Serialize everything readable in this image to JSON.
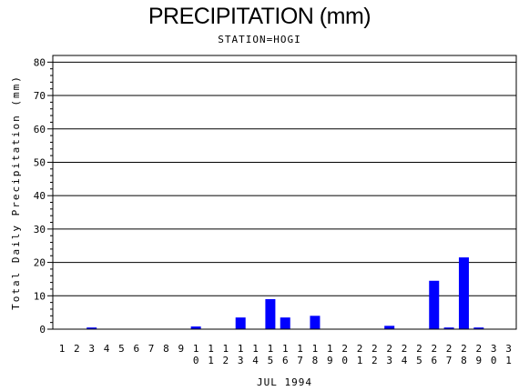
{
  "chart_data": {
    "type": "bar",
    "title": "PRECIPITATION (mm)",
    "subtitle": "STATION=HOGI",
    "xlabel": "JUL 1994",
    "ylabel": "Total Daily Precipitation (mm)",
    "ylim": [
      0,
      82
    ],
    "yticks": [
      0,
      10,
      20,
      30,
      40,
      50,
      60,
      70,
      80
    ],
    "grid": "horizontal",
    "bar_color": "#0000ff",
    "categories": [
      "1",
      "2",
      "3",
      "4",
      "5",
      "6",
      "7",
      "8",
      "9",
      "10",
      "11",
      "12",
      "13",
      "14",
      "15",
      "16",
      "17",
      "18",
      "19",
      "20",
      "21",
      "22",
      "23",
      "24",
      "25",
      "26",
      "27",
      "28",
      "29",
      "30",
      "31"
    ],
    "values": [
      0,
      0,
      0.5,
      0,
      0,
      0,
      0,
      0,
      0,
      0.8,
      0,
      0,
      3.5,
      0,
      9,
      3.5,
      0,
      4,
      0,
      0,
      0,
      0,
      1,
      0,
      0,
      14.5,
      0.5,
      21.5,
      0.5,
      0,
      0
    ]
  }
}
